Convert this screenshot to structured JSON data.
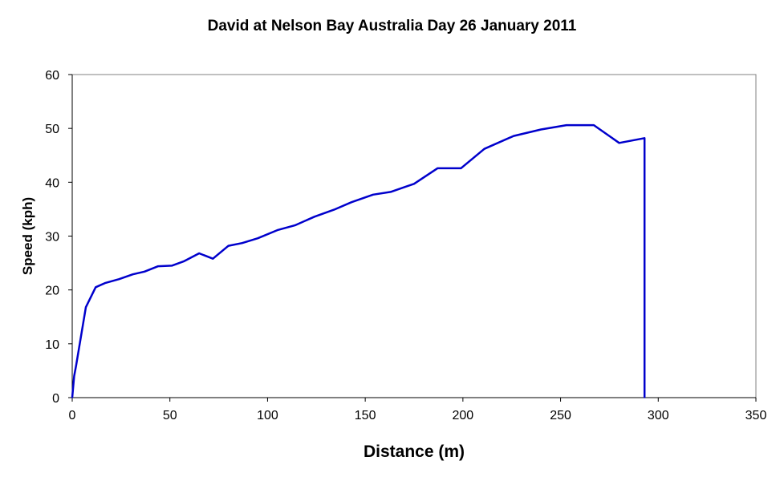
{
  "chart_data": {
    "type": "line",
    "title": "David at Nelson Bay Australia Day 26 January 2011",
    "xlabel": "Distance (m)",
    "ylabel": "Speed (kph)",
    "xlim": [
      0,
      350
    ],
    "ylim": [
      0,
      60
    ],
    "x_ticks": [
      "0",
      "50",
      "100",
      "150",
      "200",
      "250",
      "300",
      "350"
    ],
    "y_ticks": [
      "0",
      "10",
      "20",
      "30",
      "40",
      "50",
      "60"
    ],
    "grid": false,
    "legend": "none",
    "series": [
      {
        "color": "#0000cc",
        "points": [
          [
            0,
            0
          ],
          [
            1,
            4
          ],
          [
            2,
            6
          ],
          [
            7,
            16.8
          ],
          [
            12,
            20.5
          ],
          [
            17,
            21.3
          ],
          [
            24,
            22
          ],
          [
            31,
            22.9
          ],
          [
            37,
            23.4
          ],
          [
            44,
            24.4
          ],
          [
            51,
            24.5
          ],
          [
            57,
            25.3
          ],
          [
            65,
            26.8
          ],
          [
            72,
            25.8
          ],
          [
            80,
            28.2
          ],
          [
            87,
            28.7
          ],
          [
            95,
            29.6
          ],
          [
            105,
            31.1
          ],
          [
            114,
            32
          ],
          [
            124,
            33.6
          ],
          [
            134,
            34.9
          ],
          [
            143,
            36.3
          ],
          [
            154,
            37.7
          ],
          [
            163,
            38.2
          ],
          [
            175,
            39.7
          ],
          [
            187,
            42.6
          ],
          [
            199,
            42.6
          ],
          [
            211,
            46.2
          ],
          [
            226,
            48.6
          ],
          [
            240,
            49.8
          ],
          [
            253,
            50.6
          ],
          [
            267,
            50.6
          ],
          [
            280,
            47.3
          ],
          [
            293,
            48.2
          ],
          [
            293,
            0
          ]
        ]
      }
    ]
  }
}
